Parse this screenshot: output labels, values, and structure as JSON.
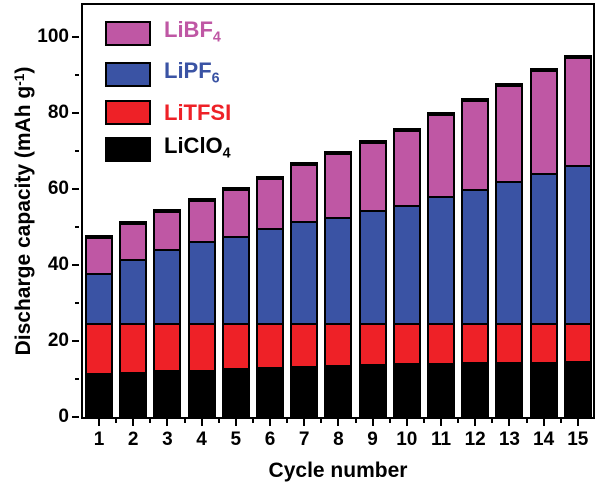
{
  "figure": {
    "background": "#ffffff",
    "axis_color": "#000000"
  },
  "chart_data": {
    "type": "bar",
    "stacked": true,
    "title": "",
    "xlabel": "Cycle number",
    "ylabel": "Discharge capacity (mAh g⁻¹)",
    "ylabel_parts": {
      "pre": "Discharge capacity (mAh g",
      "sup": "-1",
      "post": ")"
    },
    "categories": [
      "1",
      "2",
      "3",
      "4",
      "5",
      "6",
      "7",
      "8",
      "9",
      "10",
      "11",
      "12",
      "13",
      "14",
      "15"
    ],
    "ylim": [
      0,
      108
    ],
    "y_major_ticks": [
      0,
      20,
      40,
      60,
      80,
      100
    ],
    "y_minor_ticks": [
      10,
      30,
      50,
      70,
      90
    ],
    "grid": false,
    "legend_position": "top-left-inside",
    "bar_outline_color": "#000000",
    "series": [
      {
        "name": "LiClO4",
        "label_main": "LiClO",
        "label_sub": "4",
        "color": "#000000",
        "values": [
          11.7,
          11.9,
          12.3,
          12.5,
          12.9,
          13.2,
          13.4,
          13.8,
          14.0,
          14.2,
          14.3,
          14.4,
          14.5,
          14.6,
          14.7
        ]
      },
      {
        "name": "LiTFSI",
        "label_main": "LiTFSI",
        "label_sub": "",
        "color": "#ee2127",
        "values": [
          13.0,
          12.8,
          12.4,
          12.2,
          11.8,
          11.5,
          11.3,
          10.9,
          10.7,
          10.5,
          10.4,
          10.3,
          10.2,
          10.1,
          10.0
        ]
      },
      {
        "name": "LiPF6",
        "label_main": "LiPF",
        "label_sub": "6",
        "color": "#3a53a4",
        "values": [
          13.3,
          17.0,
          19.6,
          21.6,
          23.0,
          25.0,
          27.0,
          27.9,
          29.9,
          31.2,
          33.4,
          35.4,
          37.5,
          39.6,
          41.7
        ]
      },
      {
        "name": "LiBF4",
        "label_main": "LiBF",
        "label_sub": "4",
        "color": "#bf57a4",
        "values": [
          9.5,
          9.4,
          9.8,
          10.7,
          12.2,
          13.2,
          14.8,
          16.8,
          17.7,
          19.7,
          21.7,
          23.3,
          25.2,
          27.1,
          28.3
        ]
      }
    ],
    "stack_totals": [
      47.5,
      51.1,
      54.1,
      57.0,
      59.9,
      62.9,
      66.5,
      69.4,
      72.3,
      75.6,
      79.8,
      83.4,
      87.4,
      91.4,
      94.7
    ],
    "legend_order_top_to_bottom": [
      "LiBF4",
      "LiPF6",
      "LiTFSI",
      "LiClO4"
    ]
  }
}
